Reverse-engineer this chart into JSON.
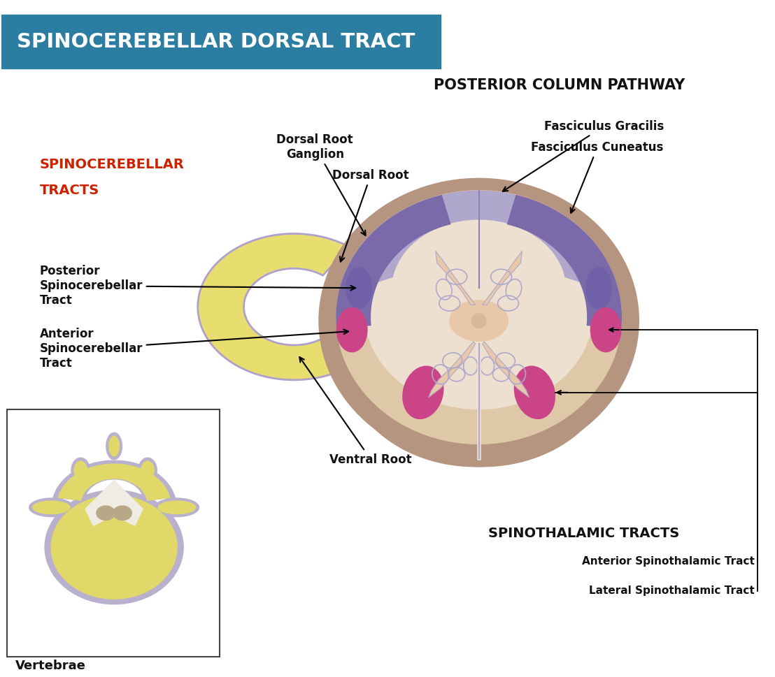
{
  "title": "SPINOCEREBELLAR DORSAL TRACT",
  "title_bg_color": "#2b7ea1",
  "title_text_color": "#ffffff",
  "bg_color": "#ffffff",
  "section_posterior": "POSTERIOR COLUMN PATHWAY",
  "section_spinocer_line1": "SPINOCEREBELLAR",
  "section_spinocer_line2": "TRACTS",
  "section_spinocer_color": "#cc2200",
  "section_spinothal": "SPINOTHALAMIC TRACTS",
  "labels": {
    "dorsal_root_ganglion": "Dorsal Root\nGanglion",
    "dorsal_root": "Dorsal Root",
    "ventral_root": "Ventral Root",
    "posterior_spinocerebellar": "Posterior\nSpinocerebellar\nTract",
    "anterior_spinocerebellar": "Anterior\nSpinocerebellar\nTract",
    "fasciculus_gracilis": "Fasciculus Gracilis",
    "fasciculus_cuneatus": "Fasciculus Cuneatus",
    "anterior_spinothalamic": "Anterior Spinothalamic Tract",
    "lateral_spinothalamic": "Lateral Spinothalamic Tract",
    "vertebrae": "Vertebrae"
  },
  "colors": {
    "outer_brown": "#b59580",
    "inner_tan": "#dfc8a8",
    "white_matter": "#ede0d0",
    "posterior_col_light": "#b0a8cc",
    "posterior_col_dark": "#7a6aaa",
    "gray_matter": "#e8c8a8",
    "gray_matter_center": "#e0c098",
    "pink_tract": "#cc4488",
    "purple_tract": "#7060a8",
    "nerve_yellow": "#e8de70",
    "nerve_yellow_outer": "#d8ce60",
    "nerve_outline": "#b0a0cc",
    "central_dot": "#d8b898",
    "vertebra_yellow": "#e0d868",
    "vertebra_outline": "#b8b0cc",
    "vertebra_body_fill": "#c8b880",
    "spinal_cord_mini": "#b8a888",
    "white_canal": "#f0ece4"
  }
}
